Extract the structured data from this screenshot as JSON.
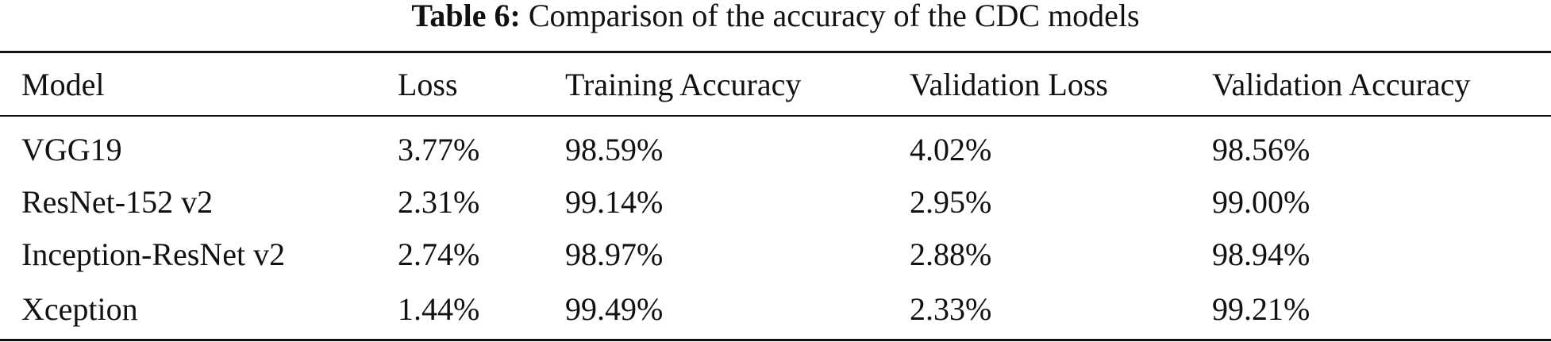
{
  "caption": {
    "label": "Table 6:",
    "text": "Comparison of the accuracy of the CDC models"
  },
  "table": {
    "headers": [
      "Model",
      "Loss",
      "Training Accuracy",
      "Validation Loss",
      "Validation Accuracy"
    ],
    "rows": [
      [
        "VGG19",
        "3.77%",
        "98.59%",
        "4.02%",
        "98.56%"
      ],
      [
        "ResNet-152 v2",
        "2.31%",
        "99.14%",
        "2.95%",
        "99.00%"
      ],
      [
        "Inception-ResNet v2",
        "2.74%",
        "98.97%",
        "2.88%",
        "98.94%"
      ],
      [
        "Xception",
        "1.44%",
        "99.49%",
        "2.33%",
        "99.21%"
      ]
    ]
  }
}
